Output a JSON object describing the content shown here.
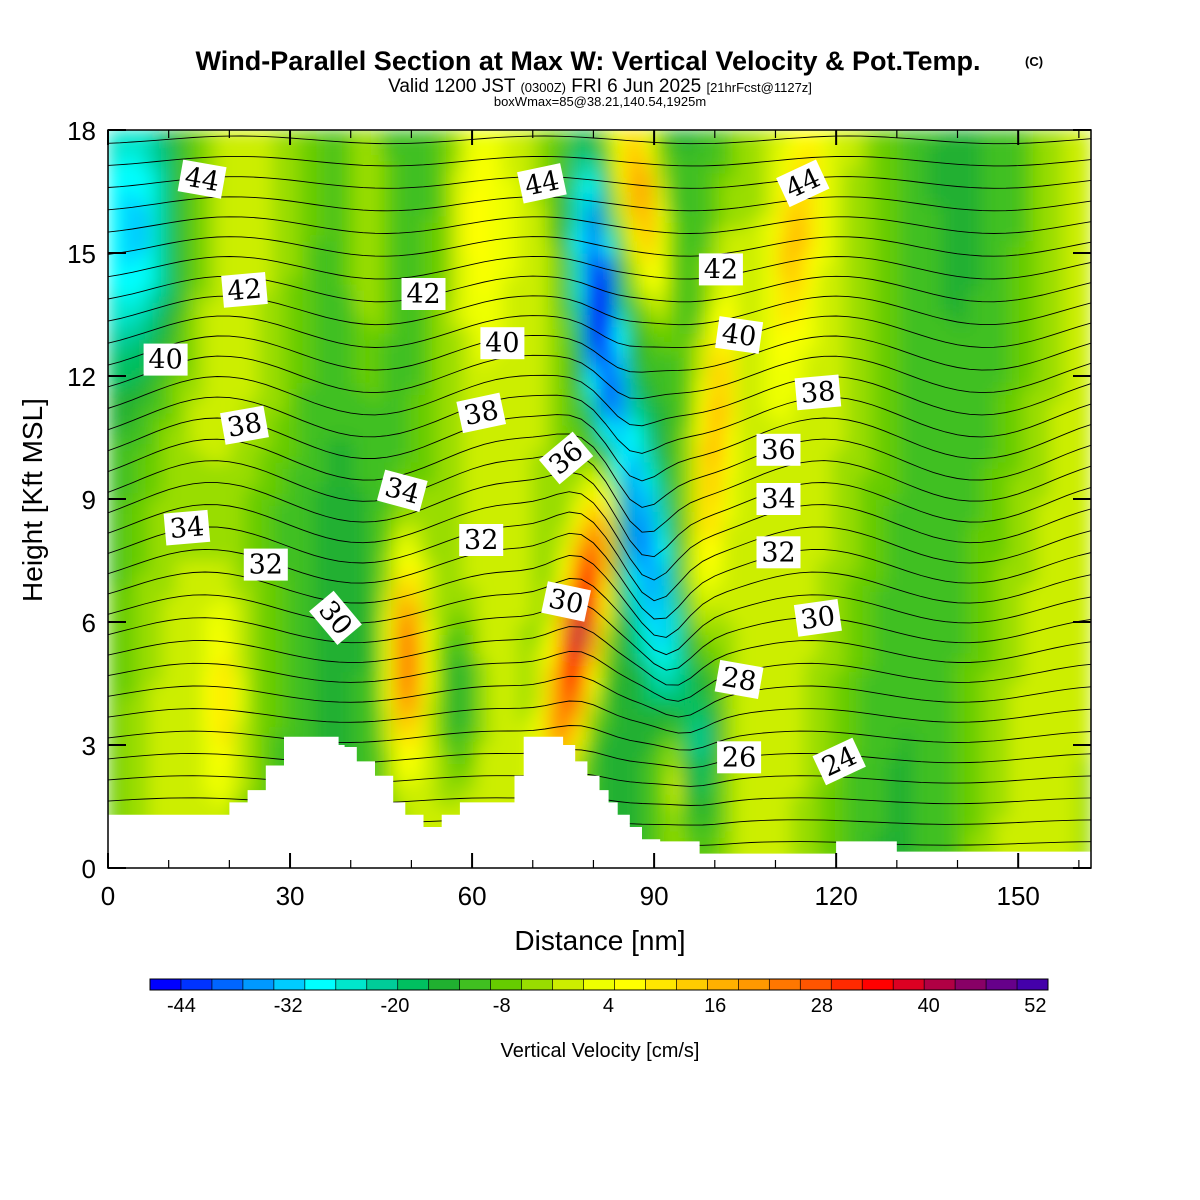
{
  "header": {
    "title": "Wind-Parallel Section at Max W: Vertical Velocity & Pot.Temp.",
    "copyright": "(C)",
    "valid_prefix": "Valid 1200 JST",
    "valid_z": "(0300Z)",
    "valid_date": "FRI 6 Jun 2025",
    "forecast": "[21hrFcst@1127z]",
    "box": "boxWmax=85@38.21,140.54,1925m"
  },
  "chart_data": {
    "type": "heatmap",
    "xlabel": "Distance [nm]",
    "ylabel": "Height [Kft MSL]",
    "xlim": [
      0,
      162
    ],
    "ylim": [
      0,
      18
    ],
    "x_ticks": [
      "0",
      "30",
      "60",
      "90",
      "120",
      "150"
    ],
    "y_ticks": [
      "0",
      "3",
      "6",
      "9",
      "12",
      "15",
      "18"
    ],
    "colorbar": {
      "label": "Vertical Velocity [cm/s]",
      "tick_labels": [
        "-44",
        "-32",
        "-20",
        "-8",
        "4",
        "16",
        "28",
        "40",
        "52"
      ],
      "colors": [
        "#0000ff",
        "#0033ff",
        "#0066ff",
        "#0099ff",
        "#00ccff",
        "#00ffff",
        "#00e6cc",
        "#00cc99",
        "#00c060",
        "#20b030",
        "#40c020",
        "#66cc00",
        "#99dd00",
        "#ccee00",
        "#eeff00",
        "#ffff00",
        "#ffe600",
        "#ffcc00",
        "#ffb000",
        "#ff9900",
        "#ff7700",
        "#ff5500",
        "#ff2a00",
        "#ff0000",
        "#dd0022",
        "#b00044",
        "#880066",
        "#66008a",
        "#4400aa"
      ]
    },
    "theta_labels": [
      {
        "text": "44",
        "x": 15.5,
        "y": 16.8,
        "rot": 10
      },
      {
        "text": "44",
        "x": 71.5,
        "y": 16.7,
        "rot": -12
      },
      {
        "text": "44",
        "x": 114.5,
        "y": 16.7,
        "rot": -25
      },
      {
        "text": "42",
        "x": 22.5,
        "y": 14.1,
        "rot": -5
      },
      {
        "text": "42",
        "x": 52,
        "y": 14.0,
        "rot": 0
      },
      {
        "text": "42",
        "x": 101,
        "y": 14.6,
        "rot": 0
      },
      {
        "text": "40",
        "x": 9.5,
        "y": 12.4,
        "rot": 0
      },
      {
        "text": "40",
        "x": 65,
        "y": 12.8,
        "rot": 0
      },
      {
        "text": "40",
        "x": 104,
        "y": 13.0,
        "rot": 8
      },
      {
        "text": "38",
        "x": 22.5,
        "y": 10.8,
        "rot": -10
      },
      {
        "text": "38",
        "x": 61.5,
        "y": 11.1,
        "rot": -12
      },
      {
        "text": "38",
        "x": 117,
        "y": 11.6,
        "rot": -5
      },
      {
        "text": "36",
        "x": 75.5,
        "y": 10.0,
        "rot": -40
      },
      {
        "text": "36",
        "x": 110.5,
        "y": 10.2,
        "rot": 0
      },
      {
        "text": "34",
        "x": 13,
        "y": 8.3,
        "rot": -5
      },
      {
        "text": "34",
        "x": 48.5,
        "y": 9.2,
        "rot": 15
      },
      {
        "text": "34",
        "x": 110.5,
        "y": 9.0,
        "rot": 0
      },
      {
        "text": "32",
        "x": 26,
        "y": 7.4,
        "rot": 0
      },
      {
        "text": "32",
        "x": 61.5,
        "y": 8.0,
        "rot": 0
      },
      {
        "text": "32",
        "x": 110.5,
        "y": 7.7,
        "rot": 0
      },
      {
        "text": "30",
        "x": 37.5,
        "y": 6.1,
        "rot": 50
      },
      {
        "text": "30",
        "x": 75.5,
        "y": 6.5,
        "rot": 12
      },
      {
        "text": "30",
        "x": 117,
        "y": 6.1,
        "rot": -8
      },
      {
        "text": "28",
        "x": 104,
        "y": 4.6,
        "rot": 10
      },
      {
        "text": "26",
        "x": 104,
        "y": 2.7,
        "rot": 0
      },
      {
        "text": "24",
        "x": 120.5,
        "y": 2.6,
        "rot": -25
      }
    ]
  }
}
